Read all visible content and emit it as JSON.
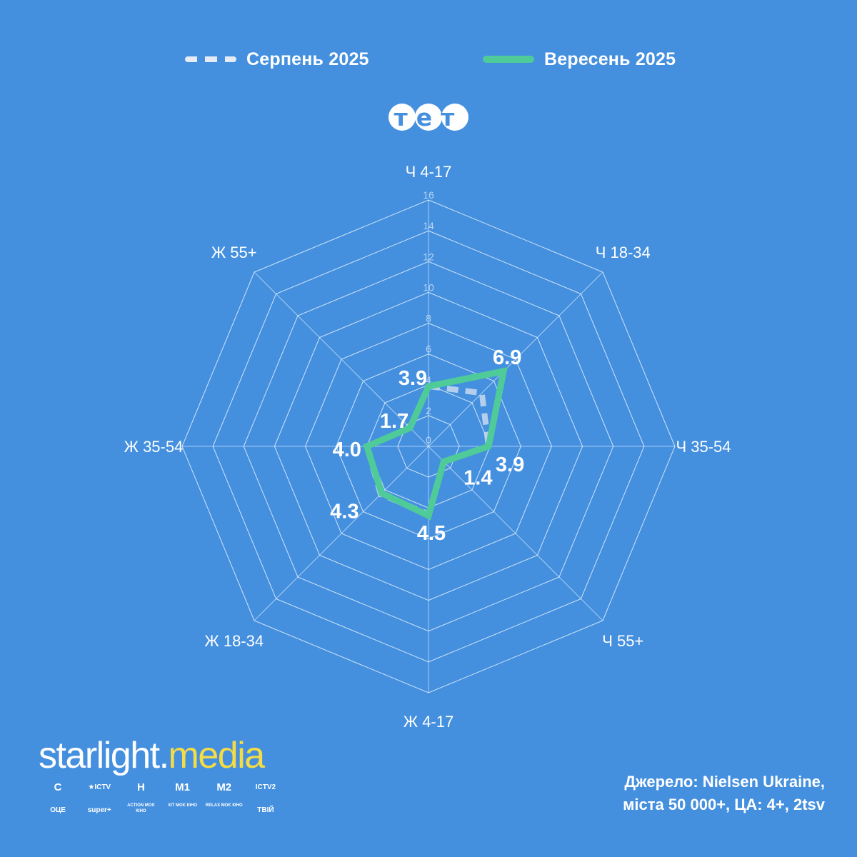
{
  "legend": {
    "series1": "Серпень 2025",
    "series2": "Вересень 2025"
  },
  "channel_logo": "тет",
  "brand": {
    "part1": "starlight",
    "dot": ".",
    "part2": "media"
  },
  "channel_logos": [
    "C",
    "★ICTV",
    "H",
    "M1",
    "M2",
    "ICTV2",
    "ОЦЕ",
    "super+",
    "ACTION МОЄ КІНО",
    "ХІТ МОЄ КІНО",
    "RELAX МОЄ КІНО",
    "ТВІЙ"
  ],
  "source": {
    "line1": "Джерело: Nielsen Ukraine,",
    "line2": "міста 50 000+, ЦА: 4+, 2tsv"
  },
  "colors": {
    "background": "#4490DF",
    "series1": "#C9D9EE",
    "series2": "#4ECB98",
    "brand_accent": "#F5DB44"
  },
  "chart_data": {
    "type": "radar",
    "categories": [
      "Ч 4-17",
      "Ч 18-34",
      "Ч 35-54",
      "Ч 55+",
      "Ж 4-17",
      "Ж 18-34",
      "Ж 35-54",
      "Ж 55+"
    ],
    "rlim": [
      0,
      16
    ],
    "ticks": [
      "0",
      "2",
      "4",
      "6",
      "8",
      "10",
      "12",
      "14",
      "16"
    ],
    "series": [
      {
        "name": "Серпень 2025",
        "values": [
          3.9,
          4.9,
          3.9,
          1.4,
          4.4,
          4.4,
          4.0,
          1.7
        ],
        "style": "dashed"
      },
      {
        "name": "Вересень 2025",
        "values": [
          3.9,
          6.9,
          3.9,
          1.4,
          4.5,
          4.3,
          4.0,
          1.7
        ],
        "style": "solid"
      }
    ],
    "value_labels": [
      "3.9",
      "6.9",
      "3.9",
      "1.4",
      "4.5",
      "4.3",
      "4.0",
      "1.7"
    ]
  }
}
